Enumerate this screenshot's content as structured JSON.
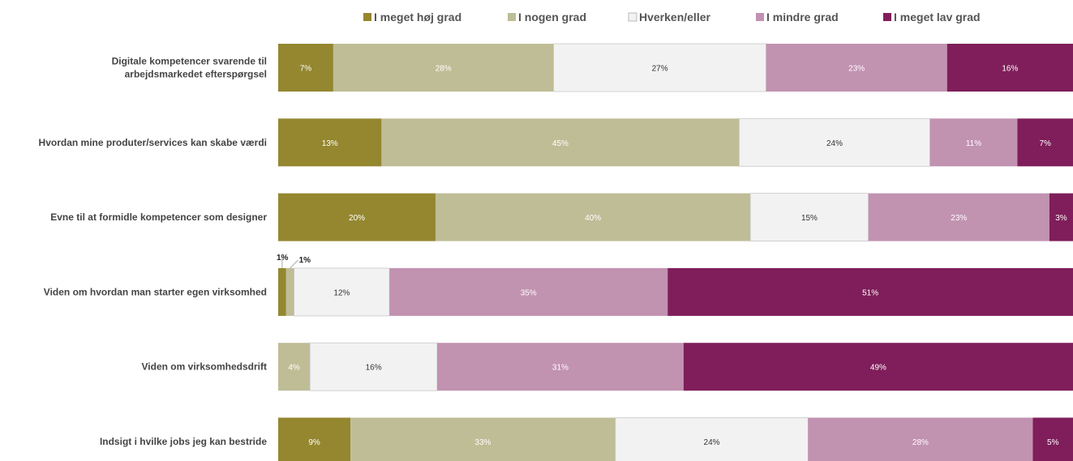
{
  "chart_data": {
    "type": "bar",
    "orientation": "horizontal",
    "stacked": true,
    "normalized": true,
    "legend_position": "top",
    "grid": false,
    "categories": [
      [
        "Digitale kompetencer svarende til",
        "arbejdsmarkedet efterspørgsel"
      ],
      [
        "Hvordan mine produter/services kan skabe værdi"
      ],
      [
        "Evne til at formidle kompetencer som designer"
      ],
      [
        "Viden om hvordan man starter egen virksomhed"
      ],
      [
        "Viden om virksomhedsdrift"
      ],
      [
        "Indsigt i hvilke jobs jeg kan bestride"
      ]
    ],
    "series": [
      {
        "name": "I meget høj grad",
        "color": "#948730",
        "values": [
          7,
          13,
          20,
          1,
          0,
          9
        ]
      },
      {
        "name": "I nogen grad",
        "color": "#bfbd96",
        "values": [
          28,
          45,
          40,
          1,
          4,
          33
        ]
      },
      {
        "name": "Hverken/eller",
        "color": "#f2f2f2",
        "values": [
          27,
          24,
          15,
          12,
          16,
          24
        ]
      },
      {
        "name": "I mindre grad",
        "color": "#c292b1",
        "values": [
          23,
          11,
          23,
          35,
          31,
          28
        ]
      },
      {
        "name": "I meget lav grad",
        "color": "#7f1e5a",
        "values": [
          16,
          7,
          3,
          51,
          49,
          5
        ]
      }
    ],
    "value_label_colors": [
      "#ffffff",
      "#ffffff",
      "#333333",
      "#ffffff",
      "#ffffff"
    ],
    "value_suffix": "%",
    "callout_labels": [
      {
        "category_index": 3,
        "series_index": 0,
        "text": "1%"
      },
      {
        "category_index": 3,
        "series_index": 1,
        "text": "1%"
      }
    ]
  }
}
